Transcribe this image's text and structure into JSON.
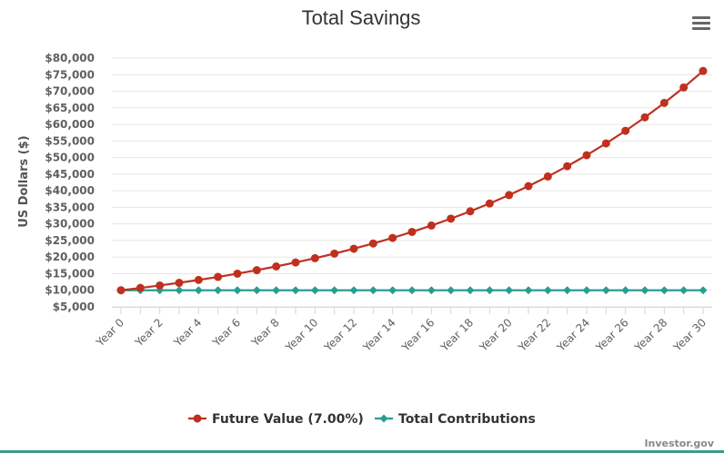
{
  "chart_data": {
    "type": "line",
    "title": "Total Savings",
    "ylabel": "US Dollars ($)",
    "xlabel": "",
    "ylim": [
      5000,
      80000
    ],
    "yticks": [
      "$5,000",
      "$10,000",
      "$15,000",
      "$20,000",
      "$25,000",
      "$30,000",
      "$35,000",
      "$40,000",
      "$45,000",
      "$50,000",
      "$55,000",
      "$60,000",
      "$65,000",
      "$70,000",
      "$75,000",
      "$80,000"
    ],
    "ytick_values": [
      5000,
      10000,
      15000,
      20000,
      25000,
      30000,
      35000,
      40000,
      45000,
      50000,
      55000,
      60000,
      65000,
      70000,
      75000,
      80000
    ],
    "categories": [
      "Year 0",
      "Year 1",
      "Year 2",
      "Year 3",
      "Year 4",
      "Year 5",
      "Year 6",
      "Year 7",
      "Year 8",
      "Year 9",
      "Year 10",
      "Year 11",
      "Year 12",
      "Year 13",
      "Year 14",
      "Year 15",
      "Year 16",
      "Year 17",
      "Year 18",
      "Year 19",
      "Year 20",
      "Year 21",
      "Year 22",
      "Year 23",
      "Year 24",
      "Year 25",
      "Year 26",
      "Year 27",
      "Year 28",
      "Year 29",
      "Year 30"
    ],
    "xtick_labels": [
      "Year 0",
      "Year 2",
      "Year 4",
      "Year 6",
      "Year 8",
      "Year 10",
      "Year 12",
      "Year 14",
      "Year 16",
      "Year 18",
      "Year 20",
      "Year 22",
      "Year 24",
      "Year 26",
      "Year 28",
      "Year 30"
    ],
    "grid": true,
    "legend_position": "bottom-center",
    "series": [
      {
        "name": "Future Value (7.00%)",
        "color": "#c0301f",
        "marker": "circle",
        "values": [
          10000,
          10700,
          11449,
          12250,
          13108,
          14026,
          15007,
          16058,
          17182,
          18385,
          19672,
          21049,
          22522,
          24098,
          25785,
          27590,
          29522,
          31588,
          33799,
          36165,
          38697,
          41406,
          44304,
          47405,
          50724,
          54274,
          58074,
          62139,
          66488,
          71143,
          76123
        ]
      },
      {
        "name": "Total Contributions",
        "color": "#2a9d8f",
        "marker": "diamond",
        "values": [
          10000,
          10000,
          10000,
          10000,
          10000,
          10000,
          10000,
          10000,
          10000,
          10000,
          10000,
          10000,
          10000,
          10000,
          10000,
          10000,
          10000,
          10000,
          10000,
          10000,
          10000,
          10000,
          10000,
          10000,
          10000,
          10000,
          10000,
          10000,
          10000,
          10000,
          10000
        ]
      }
    ]
  },
  "menu": {
    "icon": "hamburger-menu-icon"
  },
  "credits": "Investor.gov"
}
